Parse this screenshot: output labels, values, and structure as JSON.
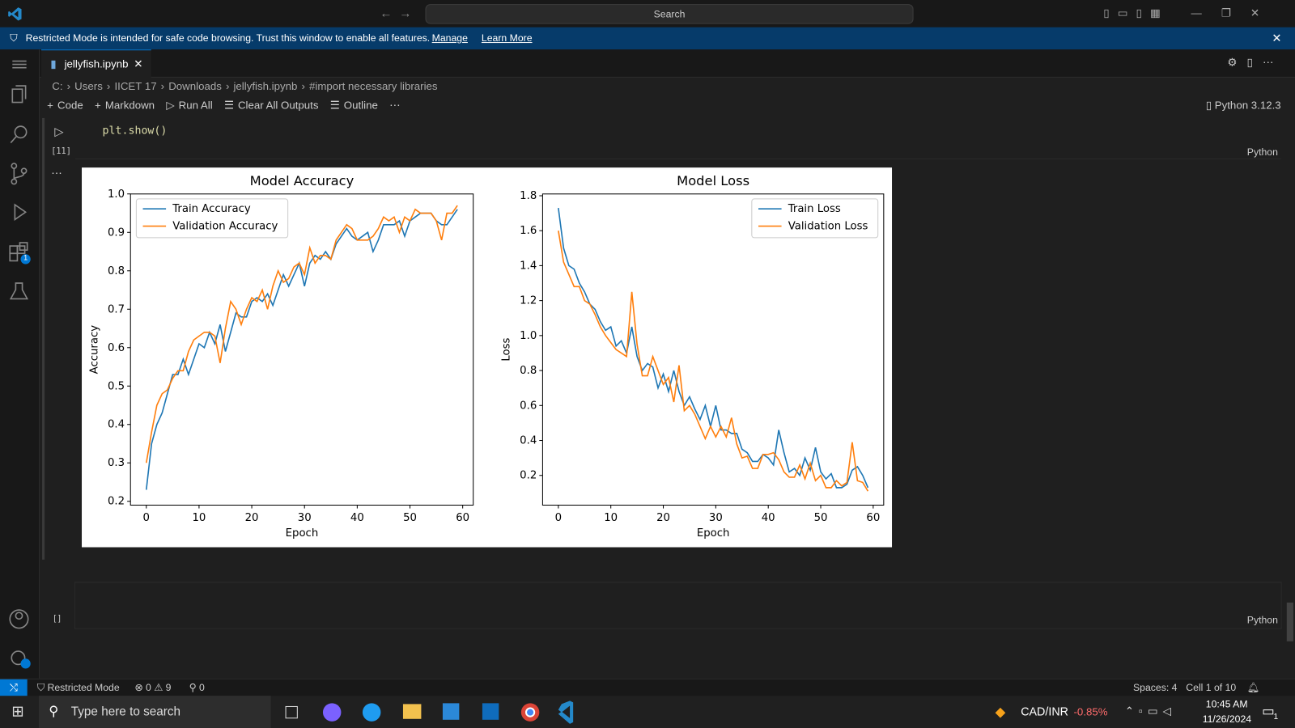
{
  "title_bar": {
    "search": "Search"
  },
  "banner": {
    "message": "Restricted Mode is intended for safe code browsing. Trust this window to enable all features.",
    "manage": "Manage",
    "learn_more": "Learn More"
  },
  "activity_bar": {
    "extensions_badge": "1"
  },
  "tab": {
    "label": "jellyfish.ipynb"
  },
  "breadcrumbs": [
    "C:",
    "Users",
    "IICET 17",
    "Downloads",
    "jellyfish.ipynb",
    "#import necessary libraries"
  ],
  "toolbar": {
    "items": [
      "Code",
      "Markdown",
      "Run All",
      "Clear All Outputs",
      "Outline"
    ],
    "kernel": "Python 3.12.3"
  },
  "cell": {
    "code": "plt.show()",
    "execution_count": "[11]",
    "language": "Python"
  },
  "empty_cell": {
    "execution_count": "[ ]",
    "language": "Python"
  },
  "status_bar": {
    "mode": "Restricted Mode",
    "errors": "0",
    "warnings": "9",
    "ports": "0",
    "spaces": "Spaces: 4",
    "cell": "Cell 1 of 10"
  },
  "taskbar": {
    "search": "Type here to search",
    "ticker": "CAD/INR",
    "change": "-0.85%",
    "time": "10:45 AM",
    "date": "11/26/2024",
    "notifications": "1"
  },
  "chart_data": [
    {
      "type": "line",
      "title": "Model Accuracy",
      "x_label": "Epoch",
      "y_label": "Accuracy",
      "x": [
        0,
        1,
        2,
        3,
        4,
        5,
        6,
        7,
        8,
        9,
        10,
        11,
        12,
        13,
        14,
        15,
        16,
        17,
        18,
        19,
        20,
        21,
        22,
        23,
        24,
        25,
        26,
        27,
        28,
        29,
        30,
        31,
        32,
        33,
        34,
        35,
        36,
        37,
        38,
        39,
        40,
        41,
        42,
        43,
        44,
        45,
        46,
        47,
        48,
        49,
        50,
        51,
        52,
        53,
        54,
        55,
        56,
        57,
        58,
        59
      ],
      "series": [
        {
          "name": "Train Accuracy",
          "color": "#1f77b4",
          "values": [
            0.23,
            0.35,
            0.4,
            0.43,
            0.48,
            0.53,
            0.53,
            0.57,
            0.53,
            0.57,
            0.61,
            0.6,
            0.64,
            0.61,
            0.66,
            0.59,
            0.64,
            0.69,
            0.68,
            0.68,
            0.72,
            0.73,
            0.72,
            0.74,
            0.71,
            0.75,
            0.79,
            0.76,
            0.79,
            0.82,
            0.76,
            0.82,
            0.84,
            0.83,
            0.85,
            0.83,
            0.87,
            0.89,
            0.91,
            0.89,
            0.88,
            0.89,
            0.9,
            0.85,
            0.88,
            0.92,
            0.92,
            0.92,
            0.93,
            0.89,
            0.93,
            0.94,
            0.95,
            0.95,
            0.95,
            0.93,
            0.92,
            0.92,
            0.94,
            0.96
          ]
        },
        {
          "name": "Validation Accuracy",
          "color": "#ff7f0e",
          "values": [
            0.3,
            0.38,
            0.45,
            0.48,
            0.49,
            0.52,
            0.54,
            0.54,
            0.59,
            0.62,
            0.63,
            0.64,
            0.64,
            0.63,
            0.56,
            0.65,
            0.72,
            0.7,
            0.66,
            0.7,
            0.73,
            0.72,
            0.75,
            0.7,
            0.76,
            0.8,
            0.77,
            0.78,
            0.81,
            0.82,
            0.79,
            0.86,
            0.82,
            0.84,
            0.84,
            0.83,
            0.88,
            0.9,
            0.92,
            0.91,
            0.88,
            0.88,
            0.88,
            0.89,
            0.91,
            0.94,
            0.93,
            0.94,
            0.9,
            0.94,
            0.93,
            0.96,
            0.95,
            0.95,
            0.95,
            0.93,
            0.88,
            0.95,
            0.95,
            0.97
          ]
        }
      ],
      "xlim": [
        -3,
        62
      ],
      "ylim": [
        0.19,
        1.0
      ],
      "xticks": [
        0,
        10,
        20,
        30,
        40,
        50,
        60
      ],
      "yticks": [
        0.2,
        0.3,
        0.4,
        0.5,
        0.6,
        0.7,
        0.8,
        0.9,
        {
          "value": 1,
          "label": "1.0"
        }
      ],
      "legend": "upper left",
      "grid": false
    },
    {
      "type": "line",
      "title": "Model Loss",
      "x_label": "Epoch",
      "y_label": "Loss",
      "x": [
        0,
        1,
        2,
        3,
        4,
        5,
        6,
        7,
        8,
        9,
        10,
        11,
        12,
        13,
        14,
        15,
        16,
        17,
        18,
        19,
        20,
        21,
        22,
        23,
        24,
        25,
        26,
        27,
        28,
        29,
        30,
        31,
        32,
        33,
        34,
        35,
        36,
        37,
        38,
        39,
        40,
        41,
        42,
        43,
        44,
        45,
        46,
        47,
        48,
        49,
        50,
        51,
        52,
        53,
        54,
        55,
        56,
        57,
        58,
        59
      ],
      "series": [
        {
          "name": "Train Loss",
          "color": "#1f77b4",
          "values": [
            1.73,
            1.5,
            1.4,
            1.38,
            1.3,
            1.25,
            1.18,
            1.15,
            1.08,
            1.03,
            1.05,
            0.94,
            0.97,
            0.9,
            1.05,
            0.88,
            0.8,
            0.84,
            0.82,
            0.7,
            0.78,
            0.68,
            0.8,
            0.68,
            0.6,
            0.65,
            0.58,
            0.52,
            0.6,
            0.48,
            0.6,
            0.46,
            0.46,
            0.44,
            0.44,
            0.35,
            0.33,
            0.28,
            0.28,
            0.32,
            0.3,
            0.26,
            0.46,
            0.33,
            0.22,
            0.24,
            0.2,
            0.3,
            0.23,
            0.36,
            0.22,
            0.18,
            0.21,
            0.13,
            0.13,
            0.15,
            0.23,
            0.25,
            0.2,
            0.13
          ]
        },
        {
          "name": "Validation Loss",
          "color": "#ff7f0e",
          "values": [
            1.6,
            1.42,
            1.35,
            1.28,
            1.28,
            1.2,
            1.18,
            1.12,
            1.05,
            1.0,
            0.96,
            0.92,
            0.9,
            0.88,
            1.25,
            0.95,
            0.77,
            0.77,
            0.88,
            0.8,
            0.72,
            0.76,
            0.62,
            0.83,
            0.57,
            0.6,
            0.55,
            0.48,
            0.41,
            0.48,
            0.42,
            0.48,
            0.42,
            0.53,
            0.38,
            0.3,
            0.31,
            0.24,
            0.24,
            0.32,
            0.32,
            0.33,
            0.29,
            0.22,
            0.19,
            0.19,
            0.26,
            0.18,
            0.27,
            0.17,
            0.2,
            0.13,
            0.13,
            0.17,
            0.14,
            0.16,
            0.39,
            0.17,
            0.16,
            0.11
          ]
        }
      ],
      "xlim": [
        -3,
        62
      ],
      "ylim": [
        0.03,
        1.81
      ],
      "xticks": [
        0,
        10,
        20,
        30,
        40,
        50,
        60
      ],
      "yticks": [
        0.2,
        0.4,
        0.6,
        0.8,
        {
          "value": 1,
          "label": "1.0"
        },
        1.2,
        1.4,
        1.6,
        1.8
      ],
      "legend": "upper right",
      "grid": false
    }
  ]
}
